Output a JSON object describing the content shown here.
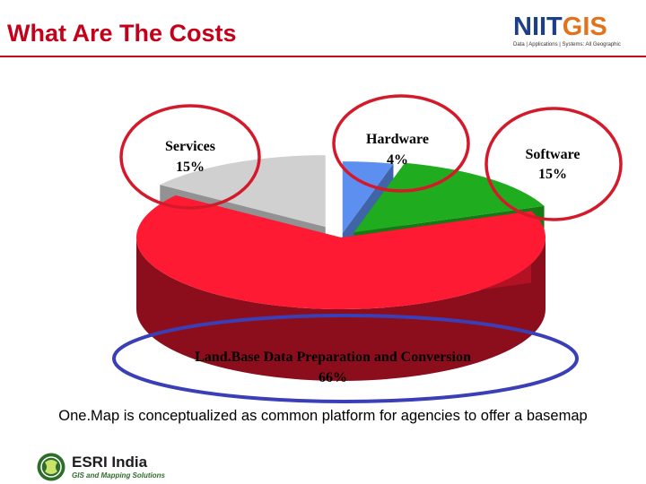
{
  "slide": {
    "title": "What Are The Costs",
    "caption": "One.Map is conceptualized  as common platform for agencies to offer a basemap"
  },
  "logos": {
    "niit": {
      "part1": "NIIT",
      "part2": "GIS",
      "tagline": "Data | Applications | Systems: All Geographic"
    },
    "esri": {
      "name": "ESRI India",
      "tagline": "GIS and Mapping Solutions"
    }
  },
  "colors": {
    "title": "#c4001a",
    "landbase": "#ff1a33",
    "software": "#1fad1f",
    "hardware": "#5c8ff0",
    "services": "#d0d0d0",
    "highlight_red": "#d41a2a",
    "highlight_blue": "#3a3fb8"
  },
  "chart_data": {
    "type": "pie",
    "style": "3d-exploded",
    "title": "",
    "slices": [
      {
        "key": "hardware",
        "name": "Hardware",
        "value": 4,
        "label": "4%"
      },
      {
        "key": "software",
        "name": "Software",
        "value": 15,
        "label": "15%"
      },
      {
        "key": "landbase",
        "name": "Land.Base Data Preparation and Conversion",
        "value": 66,
        "label": "66%"
      },
      {
        "key": "services",
        "name": "Services",
        "value": 15,
        "label": "15%"
      }
    ]
  }
}
